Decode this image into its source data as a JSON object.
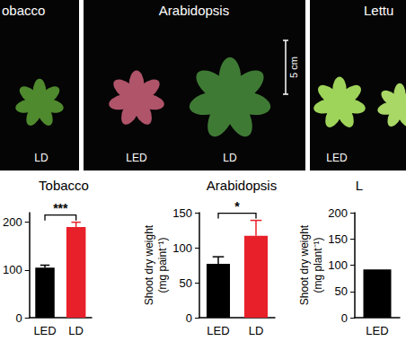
{
  "photo_panels": [
    {
      "title": "obacco",
      "labels": [
        "LD"
      ]
    },
    {
      "title": "Arabidopsis",
      "labels": [
        "LED",
        "LD"
      ],
      "scale_bar": "5 cm"
    },
    {
      "title": "Lettu",
      "labels": [
        "LED"
      ]
    }
  ],
  "chart_data": [
    {
      "type": "bar",
      "title": "Tobacco",
      "categories": [
        "LED",
        "LD"
      ],
      "values": [
        105,
        190
      ],
      "errors": [
        5,
        10
      ],
      "colors": [
        "#000000",
        "#e8202a"
      ],
      "ylim": [
        0,
        220
      ],
      "yticks": [
        0,
        100,
        200
      ],
      "annotation": "***"
    },
    {
      "type": "bar",
      "title": "Arabidopsis",
      "y_label": "Shoot dry weight\n(mg paint⁻¹)",
      "categories": [
        "LED",
        "LD"
      ],
      "values": [
        77,
        117
      ],
      "errors": [
        10,
        22
      ],
      "colors": [
        "#000000",
        "#e8202a"
      ],
      "ylim": [
        0,
        150
      ],
      "yticks": [
        0,
        50,
        100,
        150
      ],
      "annotation": "*"
    },
    {
      "type": "bar",
      "title": "L",
      "y_label": "Shoot dry weight\n(mg plant⁻¹)",
      "categories": [
        "LED"
      ],
      "values": [
        92
      ],
      "colors": [
        "#000000"
      ],
      "ylim": [
        0,
        200
      ],
      "yticks": [
        0,
        50,
        100,
        150,
        200
      ]
    }
  ]
}
